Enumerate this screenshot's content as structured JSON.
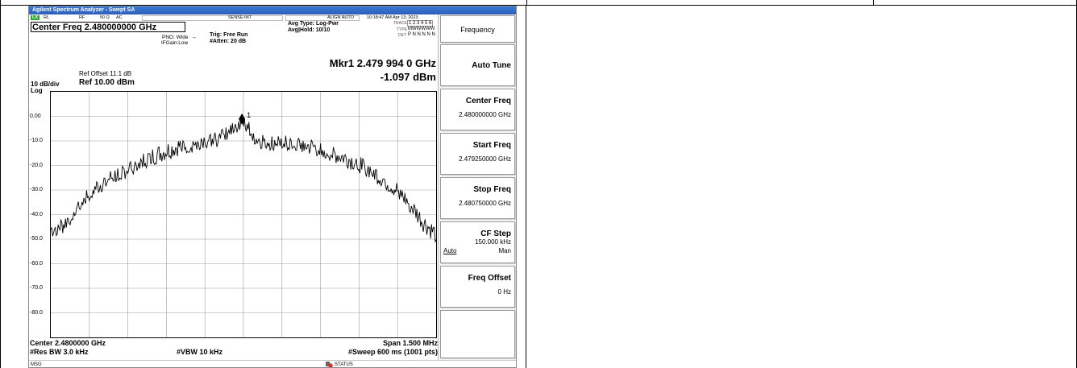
{
  "window": {
    "title": "Agilent Spectrum Analyzer - Swept SA"
  },
  "status_bar": {
    "rl": "RL",
    "rf": "RF",
    "impedance": "50 Ω",
    "coupling": "AC",
    "sense": "SENSE:INT",
    "align": "ALIGN AUTO",
    "datetime": "10:18:47 AM Apr 13, 2023"
  },
  "measurement": {
    "center_freq": "Center Freq 2.480000000 GHz",
    "pno": "PNO: Wide",
    "ifgain": "IFGain:Low",
    "trig": "Trig: Free Run",
    "atten": "#Atten: 20 dB",
    "avg_type": "Avg Type: Log-Pwr",
    "avg_hold": "Avg|Hold: 10/10",
    "trace_label": "TRACE",
    "trace_nums": "1 2 3 4 5 6",
    "type_label": "TYPE",
    "type_vals": "MWWWWW",
    "det_label": "DET",
    "det_vals": "P N N N N N",
    "ref_offset": "Ref Offset 11.1 dB",
    "scale": "10 dB/div",
    "ref_level": "Ref 10.00 dBm",
    "log": "Log",
    "marker_freq": "Mkr1 2.479 994 0 GHz",
    "marker_amp": "-1.097 dBm",
    "marker_label": "1"
  },
  "axis": {
    "y_ticks": [
      "0.00",
      "-10.0",
      "-20.0",
      "-30.0",
      "-40.0",
      "-50.0",
      "-60.0",
      "-70.0",
      "-80.0"
    ]
  },
  "footer": {
    "center": "Center 2.4800000 GHz",
    "res_bw": "#Res BW 3.0 kHz",
    "vbw": "#VBW 10 kHz",
    "span": "Span 1.500 MHz",
    "sweep": "#Sweep  600 ms (1001 pts)"
  },
  "msg_bar": {
    "msg": "MSG",
    "status": "STATUS"
  },
  "softkeys": {
    "menu_title": "Frequency",
    "auto_tune": "Auto Tune",
    "center_freq_label": "Center Freq",
    "center_freq_value": "2.480000000 GHz",
    "start_freq_label": "Start Freq",
    "start_freq_value": "2.479250000 GHz",
    "stop_freq_label": "Stop Freq",
    "stop_freq_value": "2.480750000 GHz",
    "cf_step_label": "CF Step",
    "cf_step_value": "150.000 kHz",
    "cf_step_auto": "Auto",
    "cf_step_man": "Man",
    "freq_offset_label": "Freq Offset",
    "freq_offset_value": "0 Hz"
  },
  "chart_data": {
    "type": "line",
    "title": "",
    "xlabel": "",
    "ylabel": "",
    "x_range_ghz": [
      2.47925,
      2.48075
    ],
    "ylim": [
      -90,
      10
    ],
    "grid": true,
    "series": [
      {
        "x": [
          2.47925,
          2.4793,
          2.47935,
          2.4794,
          2.47945,
          2.4795,
          2.47955,
          2.4796,
          2.47965,
          2.4797,
          2.47975,
          2.4798,
          2.47985,
          2.4799,
          2.479994,
          2.48005,
          2.4801,
          2.48015,
          2.4802,
          2.48025,
          2.4803,
          2.48035,
          2.4804,
          2.48045,
          2.4805,
          2.48055,
          2.4806,
          2.48065,
          2.4807,
          2.48075
        ],
        "y": [
          -46,
          -44,
          -37,
          -31,
          -27,
          -24,
          -21,
          -18,
          -16,
          -14,
          -12,
          -11,
          -10,
          -9,
          -1.097,
          -9,
          -10,
          -10,
          -11,
          -12,
          -13,
          -15,
          -17,
          -19,
          -22,
          -26,
          -30,
          -36,
          -43,
          -48
        ]
      }
    ],
    "marker": {
      "x": 2.479994,
      "y": -1.097
    }
  }
}
